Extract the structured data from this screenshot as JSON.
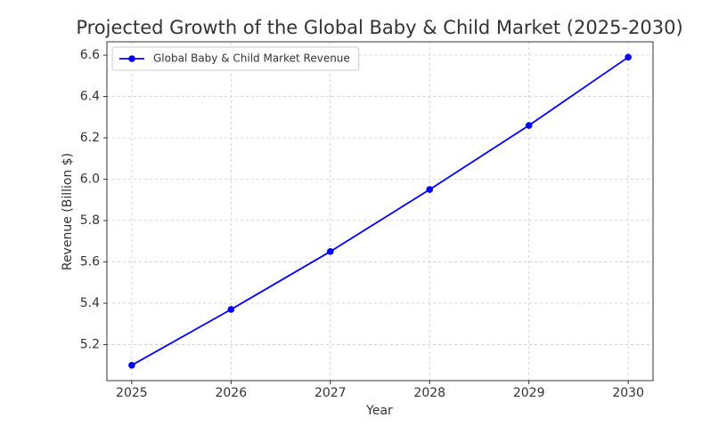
{
  "chart_data": {
    "type": "line",
    "title": "Projected Growth of the Global Baby & Child Market (2025-2030)",
    "x_label": "Year",
    "y_label": "Revenue (Billion $)",
    "x": [
      2025,
      2026,
      2027,
      2028,
      2029,
      2030
    ],
    "series": [
      {
        "name": "Global Baby & Child Market Revenue",
        "color": "#0000ff",
        "values": [
          5.1,
          5.37,
          5.65,
          5.95,
          6.26,
          6.59
        ]
      }
    ],
    "xlim": [
      2024.75,
      2030.25
    ],
    "xticks": [
      2025,
      2026,
      2027,
      2028,
      2029,
      2030
    ],
    "ylim": [
      5.0255,
      6.6645
    ],
    "yticks": [
      {
        "value": 5.2,
        "label": "5.2"
      },
      {
        "value": 5.4,
        "label": "5.4"
      },
      {
        "value": 5.6,
        "label": "5.6"
      },
      {
        "value": 5.8,
        "label": "5.8"
      },
      {
        "value": 6.0,
        "label": "6.0"
      },
      {
        "value": 6.2,
        "label": "6.2"
      },
      {
        "value": 6.4,
        "label": "6.4"
      },
      {
        "value": 6.6,
        "label": "6.6"
      }
    ],
    "grid": true,
    "legend": "upper-left"
  }
}
